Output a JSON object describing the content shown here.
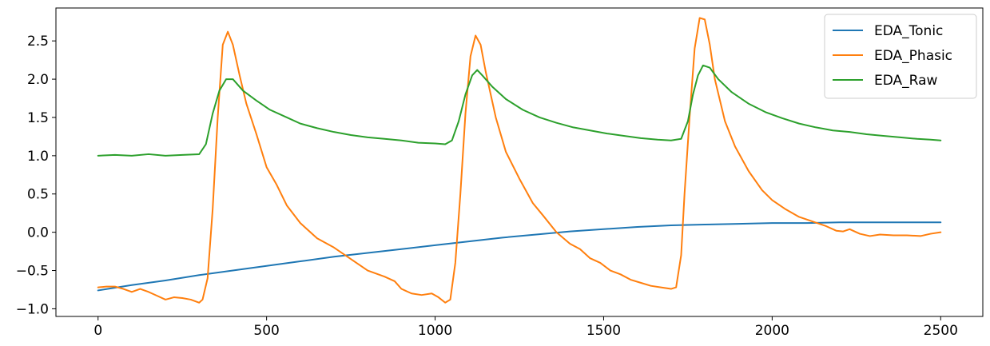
{
  "chart_data": {
    "type": "line",
    "title": "",
    "xlabel": "",
    "ylabel": "",
    "xlim": [
      -125,
      2625
    ],
    "ylim": [
      -1.1,
      2.93
    ],
    "xticks": [
      0,
      500,
      1000,
      1500,
      2000,
      2500
    ],
    "xtick_labels": [
      "0",
      "500",
      "1000",
      "1500",
      "2000",
      "2500"
    ],
    "yticks": [
      -1.0,
      -0.5,
      0.0,
      0.5,
      1.0,
      1.5,
      2.0,
      2.5
    ],
    "ytick_labels": [
      "−1.0",
      "−0.5",
      "0.0",
      "0.5",
      "1.0",
      "1.5",
      "2.0",
      "2.5"
    ],
    "grid": false,
    "legend_position": "upper-right",
    "series": [
      {
        "name": "EDA_Tonic",
        "color": "#1f77b4",
        "x": [
          0,
          100,
          200,
          300,
          400,
          500,
          600,
          700,
          800,
          900,
          1000,
          1100,
          1200,
          1300,
          1400,
          1500,
          1600,
          1700,
          1800,
          1900,
          2000,
          2100,
          2200,
          2300,
          2400,
          2500
        ],
        "y": [
          -0.76,
          -0.69,
          -0.63,
          -0.56,
          -0.5,
          -0.44,
          -0.38,
          -0.32,
          -0.27,
          -0.22,
          -0.17,
          -0.12,
          -0.07,
          -0.03,
          0.01,
          0.04,
          0.07,
          0.09,
          0.1,
          0.11,
          0.12,
          0.12,
          0.13,
          0.13,
          0.13,
          0.13
        ]
      },
      {
        "name": "EDA_Phasic",
        "color": "#ff7f0e",
        "x": [
          0,
          25,
          50,
          75,
          100,
          125,
          150,
          175,
          200,
          225,
          250,
          275,
          300,
          310,
          325,
          340,
          355,
          370,
          385,
          400,
          420,
          440,
          470,
          500,
          530,
          560,
          600,
          650,
          700,
          750,
          800,
          850,
          880,
          900,
          930,
          960,
          990,
          1010,
          1030,
          1045,
          1060,
          1075,
          1090,
          1105,
          1120,
          1135,
          1150,
          1180,
          1210,
          1250,
          1290,
          1320,
          1360,
          1400,
          1430,
          1460,
          1490,
          1520,
          1550,
          1580,
          1610,
          1640,
          1670,
          1700,
          1715,
          1730,
          1740,
          1755,
          1770,
          1785,
          1800,
          1815,
          1830,
          1860,
          1890,
          1930,
          1970,
          2000,
          2040,
          2080,
          2120,
          2160,
          2190,
          2210,
          2230,
          2260,
          2290,
          2320,
          2360,
          2400,
          2440,
          2470,
          2500
        ],
        "y": [
          -0.72,
          -0.71,
          -0.71,
          -0.74,
          -0.78,
          -0.74,
          -0.78,
          -0.83,
          -0.88,
          -0.85,
          -0.86,
          -0.88,
          -0.92,
          -0.88,
          -0.6,
          0.3,
          1.5,
          2.45,
          2.62,
          2.45,
          2.05,
          1.68,
          1.28,
          0.85,
          0.62,
          0.35,
          0.12,
          -0.08,
          -0.2,
          -0.35,
          -0.5,
          -0.58,
          -0.64,
          -0.74,
          -0.8,
          -0.82,
          -0.8,
          -0.85,
          -0.92,
          -0.88,
          -0.4,
          0.5,
          1.55,
          2.3,
          2.57,
          2.45,
          2.1,
          1.5,
          1.05,
          0.7,
          0.38,
          0.22,
          0.0,
          -0.15,
          -0.22,
          -0.34,
          -0.4,
          -0.5,
          -0.55,
          -0.62,
          -0.66,
          -0.7,
          -0.72,
          -0.74,
          -0.72,
          -0.3,
          0.5,
          1.5,
          2.4,
          2.8,
          2.78,
          2.45,
          2.0,
          1.45,
          1.12,
          0.8,
          0.55,
          0.42,
          0.3,
          0.2,
          0.14,
          0.08,
          0.02,
          0.01,
          0.04,
          -0.02,
          -0.05,
          -0.03,
          -0.04,
          -0.04,
          -0.05,
          -0.02,
          0.0
        ]
      },
      {
        "name": "EDA_Raw",
        "color": "#2ca02c",
        "x": [
          0,
          50,
          100,
          150,
          200,
          250,
          300,
          320,
          340,
          360,
          380,
          400,
          430,
          470,
          510,
          560,
          600,
          650,
          700,
          750,
          800,
          850,
          900,
          950,
          1000,
          1030,
          1050,
          1070,
          1090,
          1110,
          1125,
          1140,
          1170,
          1210,
          1260,
          1310,
          1360,
          1410,
          1460,
          1510,
          1560,
          1610,
          1660,
          1700,
          1730,
          1750,
          1765,
          1780,
          1795,
          1815,
          1840,
          1880,
          1930,
          1980,
          2030,
          2080,
          2130,
          2180,
          2230,
          2280,
          2330,
          2380,
          2430,
          2470,
          2500
        ],
        "y": [
          1.0,
          1.01,
          1.0,
          1.02,
          1.0,
          1.01,
          1.02,
          1.15,
          1.55,
          1.85,
          2.0,
          2.0,
          1.85,
          1.72,
          1.6,
          1.5,
          1.42,
          1.36,
          1.31,
          1.27,
          1.24,
          1.22,
          1.2,
          1.17,
          1.16,
          1.15,
          1.2,
          1.45,
          1.8,
          2.05,
          2.12,
          2.05,
          1.9,
          1.74,
          1.6,
          1.5,
          1.43,
          1.37,
          1.33,
          1.29,
          1.26,
          1.23,
          1.21,
          1.2,
          1.22,
          1.45,
          1.8,
          2.05,
          2.18,
          2.15,
          2.0,
          1.83,
          1.68,
          1.57,
          1.49,
          1.42,
          1.37,
          1.33,
          1.31,
          1.28,
          1.26,
          1.24,
          1.22,
          1.21,
          1.2
        ]
      }
    ]
  }
}
